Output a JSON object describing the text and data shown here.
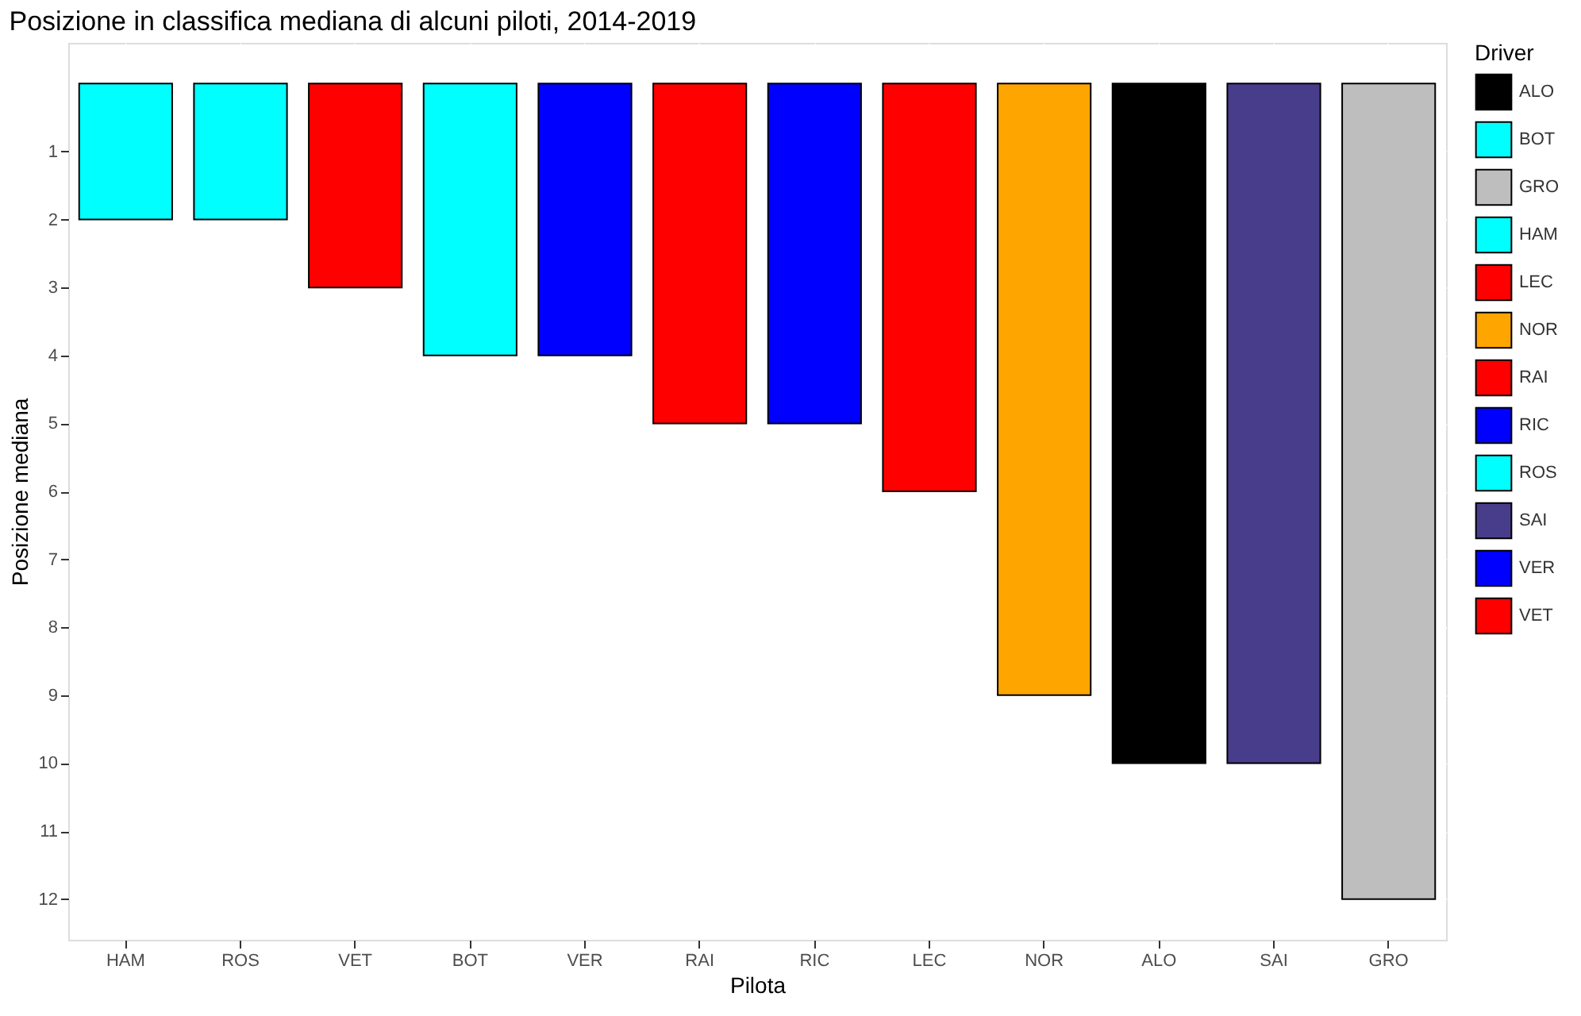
{
  "chart_data": {
    "type": "bar",
    "title": "Posizione in classifica mediana di alcuni piloti, 2014-2019",
    "xlabel": "Pilota",
    "ylabel": "Posizione mediana",
    "legend_title": "Driver",
    "categories": [
      "HAM",
      "ROS",
      "VET",
      "BOT",
      "VER",
      "RAI",
      "RIC",
      "LEC",
      "NOR",
      "ALO",
      "SAI",
      "GRO"
    ],
    "series": [
      {
        "name": "ALO",
        "color": "#000000",
        "values": [
          null,
          null,
          null,
          null,
          null,
          null,
          null,
          null,
          null,
          10,
          null,
          null
        ]
      },
      {
        "name": "BOT",
        "color": "#00ffff",
        "values": [
          null,
          null,
          null,
          4,
          null,
          null,
          null,
          null,
          null,
          null,
          null,
          null
        ]
      },
      {
        "name": "GRO",
        "color": "#bebebe",
        "values": [
          null,
          null,
          null,
          null,
          null,
          null,
          null,
          null,
          null,
          null,
          null,
          12
        ]
      },
      {
        "name": "HAM",
        "color": "#00ffff",
        "values": [
          2,
          null,
          null,
          null,
          null,
          null,
          null,
          null,
          null,
          null,
          null,
          null
        ]
      },
      {
        "name": "LEC",
        "color": "#ff0000",
        "values": [
          null,
          null,
          null,
          null,
          null,
          null,
          null,
          6,
          null,
          null,
          null,
          null
        ]
      },
      {
        "name": "NOR",
        "color": "#ffa500",
        "values": [
          null,
          null,
          null,
          null,
          null,
          null,
          null,
          null,
          9,
          null,
          null,
          null
        ]
      },
      {
        "name": "RAI",
        "color": "#ff0000",
        "values": [
          null,
          null,
          null,
          null,
          null,
          5,
          null,
          null,
          null,
          null,
          null,
          null
        ]
      },
      {
        "name": "RIC",
        "color": "#0000ff",
        "values": [
          null,
          null,
          null,
          null,
          null,
          null,
          5,
          null,
          null,
          null,
          null,
          null
        ]
      },
      {
        "name": "ROS",
        "color": "#00ffff",
        "values": [
          null,
          2,
          null,
          null,
          null,
          null,
          null,
          null,
          null,
          null,
          null,
          null
        ]
      },
      {
        "name": "SAI",
        "color": "#483d8b",
        "values": [
          null,
          null,
          null,
          null,
          null,
          null,
          null,
          null,
          null,
          null,
          10,
          null
        ]
      },
      {
        "name": "VER",
        "color": "#0000ff",
        "values": [
          null,
          null,
          null,
          null,
          4,
          null,
          null,
          null,
          null,
          null,
          null,
          null
        ]
      },
      {
        "name": "VET",
        "color": "#ff0000",
        "values": [
          null,
          null,
          3,
          null,
          null,
          null,
          null,
          null,
          null,
          null,
          null,
          null
        ]
      }
    ],
    "ylim": [
      12.6,
      -0.6
    ],
    "yticks": [
      1,
      2,
      3,
      4,
      5,
      6,
      7,
      8,
      9,
      10,
      11,
      12
    ],
    "grid": true,
    "legend": "right"
  }
}
